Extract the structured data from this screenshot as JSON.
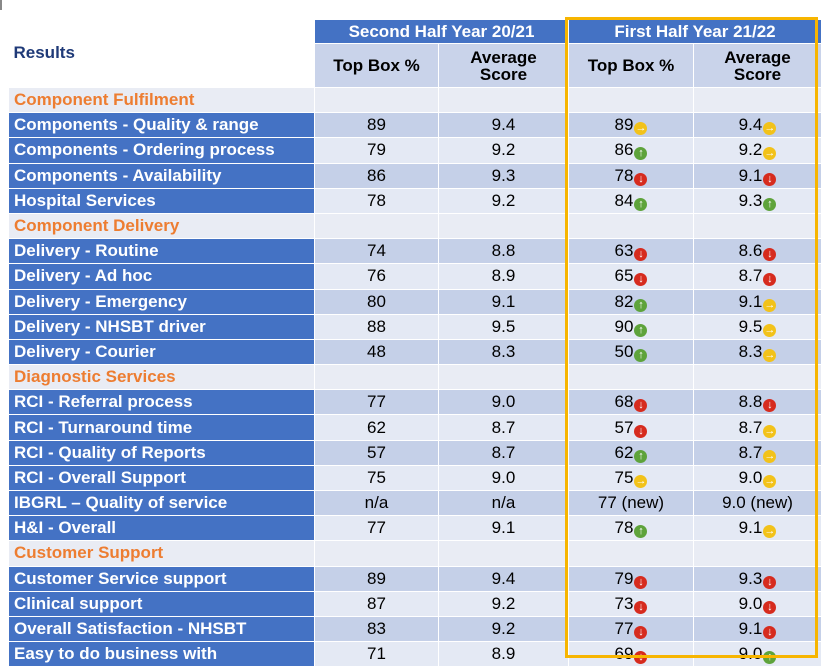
{
  "header": {
    "results_label": "Results",
    "group_prev": "Second Half Year 20/21",
    "group_curr": "First Half Year 21/22",
    "col_top_box": "Top Box %",
    "col_avg_1": "Average",
    "col_avg_2": "Score"
  },
  "colors": {
    "header_blue": "#4472c4",
    "section_orange": "#ed7d31",
    "highlight_border": "#f7b500",
    "down": "#d62b1e",
    "up": "#5ea33b",
    "same": "#f2c21a"
  },
  "sections": [
    {
      "title": "Component Fulfilment",
      "rows": [
        {
          "label": "Components - Quality & range",
          "prev_top": "89",
          "prev_avg": "9.4",
          "curr_top": "89",
          "curr_top_trend": "same",
          "curr_avg": "9.4",
          "curr_avg_trend": "same"
        },
        {
          "label": "Components - Ordering process",
          "prev_top": "79",
          "prev_avg": "9.2",
          "curr_top": "86",
          "curr_top_trend": "up",
          "curr_avg": "9.2",
          "curr_avg_trend": "same"
        },
        {
          "label": "Components - Availability",
          "prev_top": "86",
          "prev_avg": "9.3",
          "curr_top": "78",
          "curr_top_trend": "down",
          "curr_avg": "9.1",
          "curr_avg_trend": "down"
        },
        {
          "label": "Hospital Services",
          "prev_top": "78",
          "prev_avg": "9.2",
          "curr_top": "84",
          "curr_top_trend": "up",
          "curr_avg": "9.3",
          "curr_avg_trend": "up"
        }
      ]
    },
    {
      "title": "Component Delivery",
      "rows": [
        {
          "label": "Delivery - Routine",
          "prev_top": "74",
          "prev_avg": "8.8",
          "curr_top": "63",
          "curr_top_trend": "down",
          "curr_avg": "8.6",
          "curr_avg_trend": "down"
        },
        {
          "label": "Delivery - Ad hoc",
          "prev_top": "76",
          "prev_avg": "8.9",
          "curr_top": "65",
          "curr_top_trend": "down",
          "curr_avg": "8.7",
          "curr_avg_trend": "down"
        },
        {
          "label": "Delivery - Emergency",
          "prev_top": "80",
          "prev_avg": "9.1",
          "curr_top": "82",
          "curr_top_trend": "up",
          "curr_avg": "9.1",
          "curr_avg_trend": "same"
        },
        {
          "label": "Delivery - NHSBT driver",
          "prev_top": "88",
          "prev_avg": "9.5",
          "curr_top": "90",
          "curr_top_trend": "up",
          "curr_avg": "9.5",
          "curr_avg_trend": "same"
        },
        {
          "label": "Delivery - Courier",
          "prev_top": "48",
          "prev_avg": "8.3",
          "curr_top": "50",
          "curr_top_trend": "up",
          "curr_avg": "8.3",
          "curr_avg_trend": "same"
        }
      ]
    },
    {
      "title": "Diagnostic Services",
      "rows": [
        {
          "label": "RCI - Referral process",
          "prev_top": "77",
          "prev_avg": "9.0",
          "curr_top": "68",
          "curr_top_trend": "down",
          "curr_avg": "8.8",
          "curr_avg_trend": "down"
        },
        {
          "label": "RCI - Turnaround time",
          "prev_top": "62",
          "prev_avg": "8.7",
          "curr_top": "57",
          "curr_top_trend": "down",
          "curr_avg": "8.7",
          "curr_avg_trend": "same"
        },
        {
          "label": "RCI - Quality of Reports",
          "prev_top": "57",
          "prev_avg": "8.7",
          "curr_top": "62",
          "curr_top_trend": "up",
          "curr_avg": "8.7",
          "curr_avg_trend": "same"
        },
        {
          "label": "RCI - Overall Support",
          "prev_top": "75",
          "prev_avg": "9.0",
          "curr_top": "75",
          "curr_top_trend": "same",
          "curr_avg": "9.0",
          "curr_avg_trend": "same"
        },
        {
          "label": "IBGRL – Quality of service",
          "prev_top": "n/a",
          "prev_avg": "n/a",
          "curr_top": "77 (new)",
          "curr_top_trend": "",
          "curr_avg": "9.0 (new)",
          "curr_avg_trend": ""
        },
        {
          "label": "H&I - Overall",
          "prev_top": "77",
          "prev_avg": "9.1",
          "curr_top": "78",
          "curr_top_trend": "up",
          "curr_avg": "9.1",
          "curr_avg_trend": "same"
        }
      ]
    },
    {
      "title": "Customer Support",
      "rows": [
        {
          "label": "Customer Service support",
          "prev_top": "89",
          "prev_avg": "9.4",
          "curr_top": "79",
          "curr_top_trend": "down",
          "curr_avg": "9.3",
          "curr_avg_trend": "down"
        },
        {
          "label": "Clinical support",
          "prev_top": "87",
          "prev_avg": "9.2",
          "curr_top": "73",
          "curr_top_trend": "down",
          "curr_avg": "9.0",
          "curr_avg_trend": "down"
        },
        {
          "label": "Overall Satisfaction - NHSBT",
          "prev_top": "83",
          "prev_avg": "9.2",
          "curr_top": "77",
          "curr_top_trend": "down",
          "curr_avg": "9.1",
          "curr_avg_trend": "down"
        },
        {
          "label": "Easy to do business with",
          "prev_top": "71",
          "prev_avg": "8.9",
          "curr_top": "69",
          "curr_top_trend": "down",
          "curr_avg": "9.0",
          "curr_avg_trend": "up"
        }
      ]
    }
  ]
}
